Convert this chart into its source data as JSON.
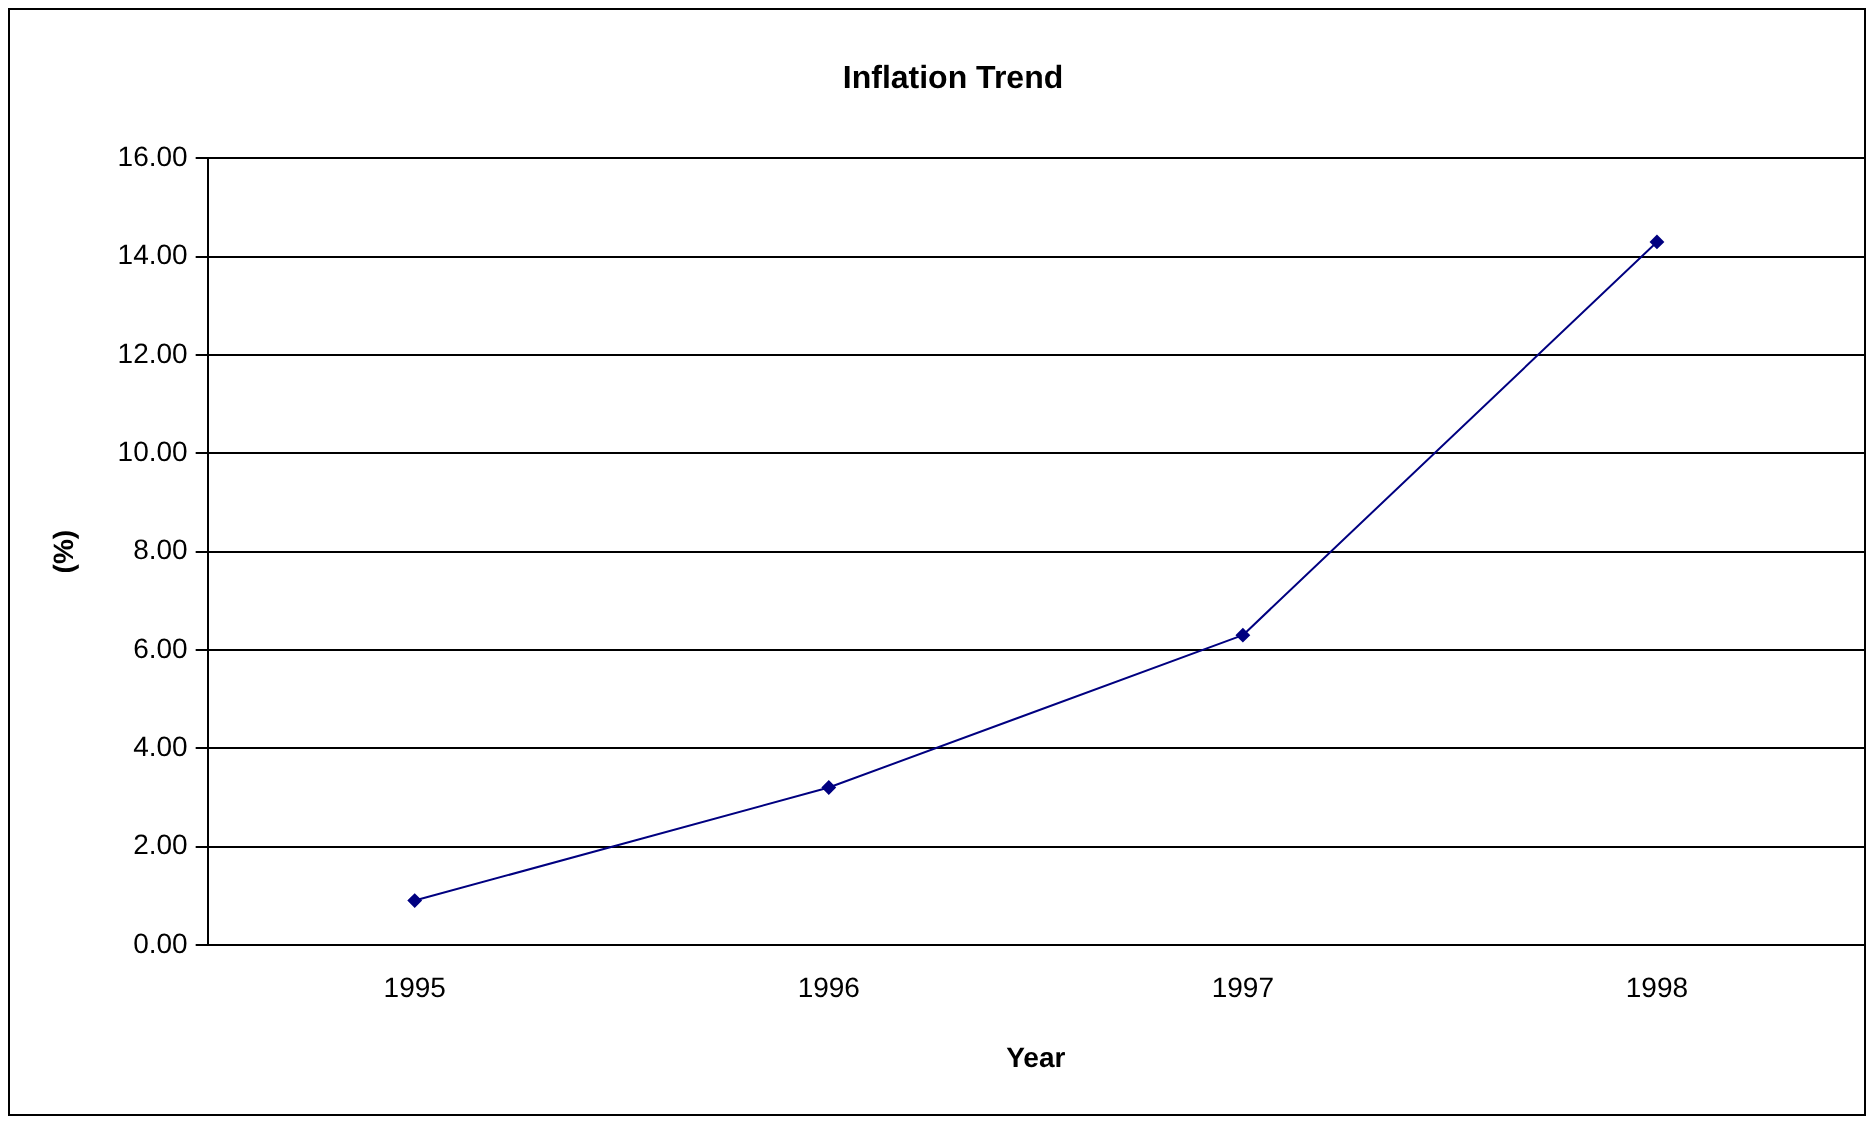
{
  "chart_data": {
    "type": "line",
    "title": "Inflation Trend",
    "xlabel": "Year",
    "ylabel": "(%)",
    "categories": [
      "1995",
      "1996",
      "1997",
      "1998"
    ],
    "series": [
      {
        "color": "#000080",
        "values": [
          0.9,
          3.2,
          6.3,
          14.3
        ]
      }
    ],
    "ylim": [
      0,
      16
    ],
    "yticks": [
      {
        "value": 0,
        "label": "0.00"
      },
      {
        "value": 2,
        "label": "2.00"
      },
      {
        "value": 4,
        "label": "4.00"
      },
      {
        "value": 6,
        "label": "6.00"
      },
      {
        "value": 8,
        "label": "8.00"
      },
      {
        "value": 10,
        "label": "10.00"
      },
      {
        "value": 12,
        "label": "12.00"
      },
      {
        "value": 14,
        "label": "14.00"
      },
      {
        "value": 16,
        "label": "16.00"
      }
    ],
    "grid": "y",
    "legend": false,
    "marker": "diamond",
    "line_style": "solid"
  }
}
